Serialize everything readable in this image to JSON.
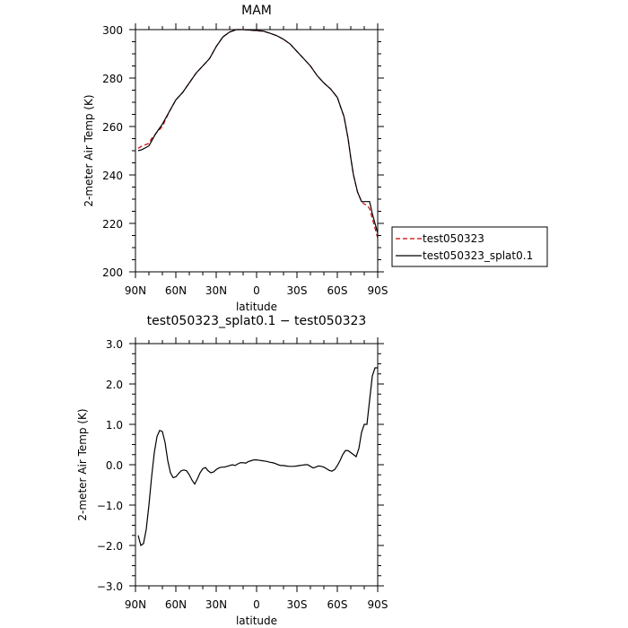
{
  "chart_data": [
    {
      "type": "line",
      "title": "MAM",
      "xlabel": "latitude",
      "ylabel": "2-meter Air Temp (K)",
      "xlim": [
        90,
        -90
      ],
      "ylim": [
        200,
        300
      ],
      "x_ticks": [
        "90N",
        "60N",
        "30N",
        "0",
        "30S",
        "60S",
        "90S"
      ],
      "y_ticks": [
        "200",
        "220",
        "240",
        "260",
        "280",
        "300"
      ],
      "legend": "right, outside plot",
      "grid": false,
      "series": [
        {
          "name": "test050323",
          "color": "#cc0000",
          "style": "dashed",
          "x": [
            88,
            85,
            80,
            78,
            75,
            70,
            65,
            60,
            55,
            50,
            45,
            40,
            35,
            30,
            25,
            20,
            15,
            10,
            5,
            0,
            -5,
            -10,
            -15,
            -20,
            -25,
            -30,
            -35,
            -40,
            -45,
            -50,
            -55,
            -60,
            -65,
            -68,
            -70,
            -72,
            -75,
            -78,
            -80,
            -82,
            -84,
            -86,
            -88,
            -90
          ],
          "y": [
            251,
            252,
            253,
            255,
            257,
            260,
            266,
            271,
            274,
            278,
            282,
            285,
            288,
            293,
            297,
            299,
            300,
            300,
            299.8,
            299.5,
            299.3,
            298.5,
            297.5,
            296,
            294,
            291,
            288,
            285,
            281,
            278,
            275.5,
            272,
            264,
            255,
            247,
            240,
            233,
            229,
            228,
            227.5,
            226,
            222,
            218,
            214
          ]
        },
        {
          "name": "test050323_splat0.1",
          "color": "#000000",
          "style": "solid",
          "x": [
            88,
            85,
            80,
            78,
            75,
            70,
            65,
            60,
            55,
            50,
            45,
            40,
            35,
            30,
            25,
            20,
            15,
            10,
            5,
            0,
            -5,
            -10,
            -15,
            -20,
            -25,
            -30,
            -35,
            -40,
            -45,
            -50,
            -55,
            -60,
            -65,
            -68,
            -70,
            -72,
            -75,
            -78,
            -80,
            -82,
            -84,
            -86,
            -88,
            -90
          ],
          "y": [
            250,
            250.5,
            252,
            254,
            257,
            261,
            266,
            271,
            274,
            278,
            282,
            285,
            288,
            293,
            297,
            299,
            300,
            300,
            299.8,
            299.6,
            299.4,
            298.5,
            297.5,
            296,
            294,
            291,
            288,
            285,
            281,
            278,
            275.5,
            272,
            264,
            255,
            247,
            240,
            233,
            229,
            229,
            229,
            229,
            224,
            220,
            216
          ]
        }
      ]
    },
    {
      "type": "line",
      "title": "test050323_splat0.1 − test050323",
      "xlabel": "latitude",
      "ylabel": "2-meter Air Temp (K)",
      "xlim": [
        90,
        -90
      ],
      "ylim": [
        -3,
        3
      ],
      "x_ticks": [
        "90N",
        "60N",
        "30N",
        "0",
        "30S",
        "60S",
        "90S"
      ],
      "y_ticks": [
        "−3.0",
        "−2.0",
        "−1.0",
        "0.0",
        "1.0",
        "2.0",
        "3.0"
      ],
      "grid": false,
      "series": [
        {
          "color": "#000000",
          "style": "solid",
          "x": [
            88,
            86,
            84,
            82,
            80,
            78,
            76,
            74,
            72,
            70,
            68,
            66,
            64,
            62,
            60,
            58,
            56,
            54,
            52,
            50,
            48,
            46,
            44,
            42,
            40,
            38,
            36,
            34,
            32,
            30,
            28,
            26,
            24,
            22,
            20,
            18,
            16,
            14,
            12,
            10,
            8,
            6,
            4,
            2,
            0,
            -2,
            -4,
            -6,
            -8,
            -10,
            -12,
            -14,
            -16,
            -18,
            -20,
            -22,
            -24,
            -26,
            -28,
            -30,
            -32,
            -34,
            -36,
            -38,
            -40,
            -42,
            -44,
            -46,
            -48,
            -50,
            -52,
            -54,
            -56,
            -58,
            -60,
            -62,
            -64,
            -66,
            -68,
            -70,
            -72,
            -74,
            -76,
            -78,
            -80,
            -82,
            -84,
            -86,
            -88,
            -90
          ],
          "y": [
            -1.75,
            -2.0,
            -1.95,
            -1.6,
            -1.0,
            -0.3,
            0.3,
            0.7,
            0.85,
            0.82,
            0.55,
            0.1,
            -0.2,
            -0.32,
            -0.3,
            -0.22,
            -0.15,
            -0.13,
            -0.15,
            -0.25,
            -0.38,
            -0.48,
            -0.35,
            -0.2,
            -0.1,
            -0.07,
            -0.15,
            -0.2,
            -0.18,
            -0.12,
            -0.08,
            -0.06,
            -0.06,
            -0.04,
            -0.02,
            0.0,
            -0.02,
            0.02,
            0.05,
            0.05,
            0.04,
            0.08,
            0.1,
            0.12,
            0.12,
            0.11,
            0.1,
            0.09,
            0.08,
            0.06,
            0.05,
            0.03,
            0.0,
            -0.02,
            -0.02,
            -0.03,
            -0.04,
            -0.04,
            -0.04,
            -0.03,
            -0.02,
            -0.01,
            0.0,
            0.0,
            -0.04,
            -0.08,
            -0.06,
            -0.03,
            -0.04,
            -0.06,
            -0.1,
            -0.14,
            -0.16,
            -0.12,
            -0.02,
            0.1,
            0.25,
            0.35,
            0.35,
            0.3,
            0.25,
            0.2,
            0.4,
            0.8,
            1.0,
            1.0,
            1.6,
            2.2,
            2.4,
            2.4
          ]
        }
      ]
    }
  ]
}
